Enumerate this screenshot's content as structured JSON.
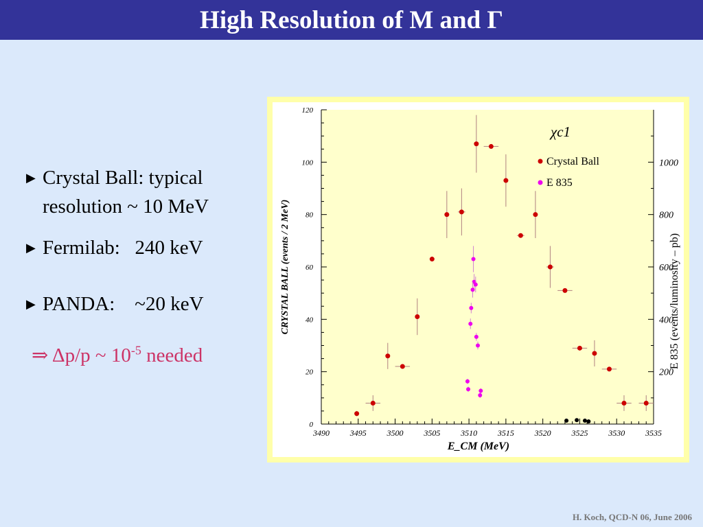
{
  "slide": {
    "title": "High Resolution of M and Γ",
    "footer": "H. Koch, QCD-N 06, June 2006"
  },
  "bullets": [
    {
      "line1": "Crystal Ball: typical",
      "line2": "resolution ~ 10 MeV"
    },
    {
      "text": "Fermilab:   240 keV"
    },
    {
      "text": "PANDA:    ~20 keV"
    }
  ],
  "conclusion": {
    "prefix": "⇒ Δp/p ~ 10",
    "exponent": "-5",
    "suffix": " needed"
  },
  "chart_data": {
    "type": "scatter",
    "title": "χc1",
    "xlabel": "E_CM (MeV)",
    "ylabel": "CRYSTAL BALL (events / 2 MeV)",
    "y2label": "E 835 (events/luminosity – pb)",
    "xlim": [
      3490,
      3535
    ],
    "ylim": [
      0,
      120
    ],
    "y2lim": [
      0,
      1200
    ],
    "xticks": [
      3490,
      3495,
      3500,
      3505,
      3510,
      3515,
      3520,
      3525,
      3530,
      3535
    ],
    "yticks": [
      0,
      20,
      40,
      60,
      80,
      100,
      120
    ],
    "y2ticks": [
      200,
      400,
      600,
      800,
      1000
    ],
    "legend": {
      "position": "top-right"
    },
    "colors": {
      "crystal_ball": "#cc0000",
      "e835": "#ee00ee",
      "background": "#ffffcc",
      "extra": "#000000"
    },
    "series": [
      {
        "name": "Crystal Ball",
        "axis": "left",
        "points": [
          {
            "x": 3494.8,
            "y": 4,
            "xerr": 0,
            "yerr": 1
          },
          {
            "x": 3497,
            "y": 8,
            "xerr": 1,
            "yerr": 3
          },
          {
            "x": 3499,
            "y": 26,
            "xerr": 0,
            "yerr": 5
          },
          {
            "x": 3501,
            "y": 22,
            "xerr": 1,
            "yerr": 0
          },
          {
            "x": 3503,
            "y": 41,
            "xerr": 0,
            "yerr": 7
          },
          {
            "x": 3505,
            "y": 63,
            "xerr": 0,
            "yerr": 0
          },
          {
            "x": 3507,
            "y": 80,
            "xerr": 0,
            "yerr": 9
          },
          {
            "x": 3509,
            "y": 81,
            "xerr": 0.5,
            "yerr": 9
          },
          {
            "x": 3511,
            "y": 107,
            "xerr": 0,
            "yerr": 11
          },
          {
            "x": 3513,
            "y": 106,
            "xerr": 1,
            "yerr": 0
          },
          {
            "x": 3515,
            "y": 93,
            "xerr": 0,
            "yerr": 10
          },
          {
            "x": 3517,
            "y": 72,
            "xerr": 0.5,
            "yerr": 0
          },
          {
            "x": 3519,
            "y": 80,
            "xerr": 0,
            "yerr": 9
          },
          {
            "x": 3521,
            "y": 60,
            "xerr": 0.5,
            "yerr": 8
          },
          {
            "x": 3523,
            "y": 51,
            "xerr": 1,
            "yerr": 0
          },
          {
            "x": 3525,
            "y": 29,
            "xerr": 1,
            "yerr": 0
          },
          {
            "x": 3527,
            "y": 27,
            "xerr": 0,
            "yerr": 5
          },
          {
            "x": 3529,
            "y": 21,
            "xerr": 1,
            "yerr": 0
          },
          {
            "x": 3531,
            "y": 8,
            "xerr": 1,
            "yerr": 3
          },
          {
            "x": 3534,
            "y": 8,
            "xerr": 1,
            "yerr": 3
          }
        ]
      },
      {
        "name": "E 835",
        "axis": "right",
        "points": [
          {
            "x": 3510.6,
            "y": 630,
            "yerr": 50
          },
          {
            "x": 3510.7,
            "y": 543,
            "yerr": 30
          },
          {
            "x": 3510.5,
            "y": 513,
            "yerr": 30
          },
          {
            "x": 3510.9,
            "y": 533,
            "yerr": 30
          },
          {
            "x": 3510.3,
            "y": 443,
            "yerr": 20
          },
          {
            "x": 3510.2,
            "y": 383,
            "yerr": 20
          },
          {
            "x": 3511.0,
            "y": 333,
            "yerr": 15
          },
          {
            "x": 3511.2,
            "y": 300,
            "yerr": 15
          },
          {
            "x": 3509.8,
            "y": 163,
            "yerr": 10
          },
          {
            "x": 3509.9,
            "y": 133,
            "yerr": 10
          },
          {
            "x": 3511.6,
            "y": 127,
            "yerr": 10
          },
          {
            "x": 3511.5,
            "y": 110,
            "yerr": 10
          }
        ]
      },
      {
        "name": "",
        "axis": "right",
        "points": [
          {
            "x": 3523.2,
            "y": 13
          },
          {
            "x": 3524.6,
            "y": 15
          },
          {
            "x": 3525.7,
            "y": 13
          },
          {
            "x": 3526.2,
            "y": 10
          }
        ]
      }
    ]
  }
}
